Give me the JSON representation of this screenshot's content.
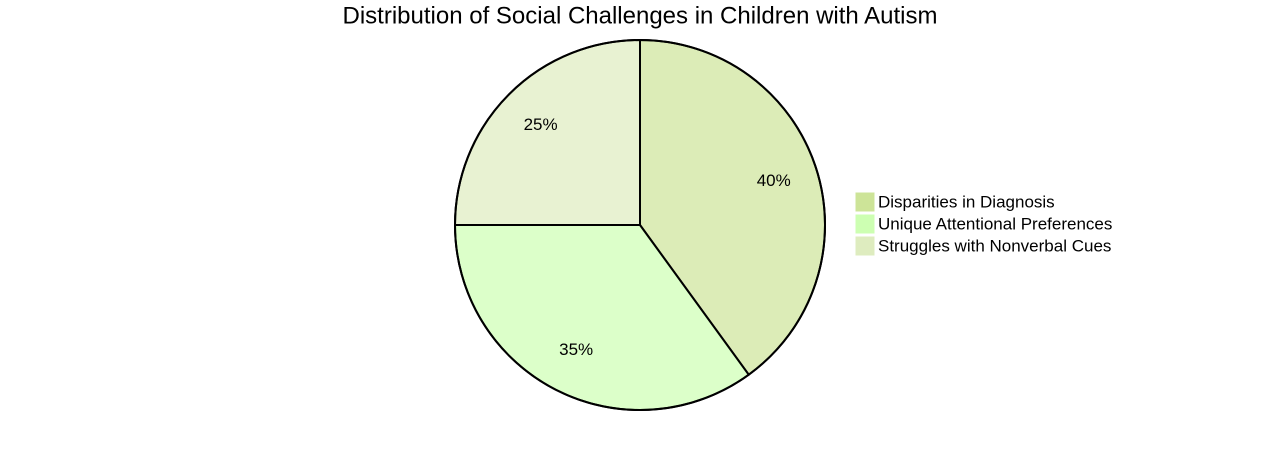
{
  "chart_data": {
    "type": "pie",
    "title": "Distribution of Social Challenges in Children with Autism",
    "categories": [
      "Disparities in Diagnosis",
      "Unique Attentional Preferences",
      "Struggles with Nonverbal Cues"
    ],
    "values": [
      40,
      35,
      25
    ],
    "value_labels": [
      "40%",
      "35%",
      "25%"
    ],
    "colors": [
      "#cde498",
      "#cdffb2",
      "#deecbf"
    ],
    "legend": "right"
  }
}
